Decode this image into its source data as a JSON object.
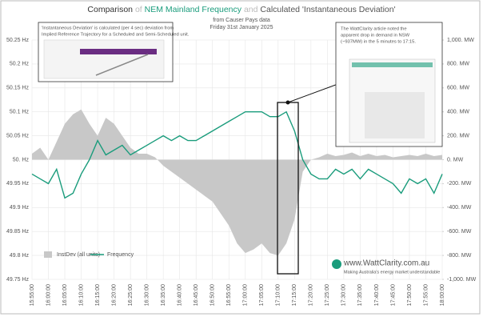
{
  "chart_data": {
    "type": "line",
    "title_parts": [
      "Comparison",
      "of",
      "NEM Mainland Frequency",
      "and",
      "Calculated 'Instantaneous Deviation'"
    ],
    "subtitle": [
      "from Causer Pays data",
      "Friday 31st January 2025"
    ],
    "annotations": [
      "'Instantaneous Deviation' is calculated (per 4 sec) deviation from",
      "Implied Reference Trajectory for a Scheduled and Semi-Scheduled unit.",
      "The WattClarity article noted the",
      "apparent drop in demand in NSW",
      "(~937MW) in the 5 minutes to 17:15."
    ],
    "watermark": [
      "www.WattClarity.com.au",
      "Making Australia's energy market understandable"
    ],
    "x": [
      "15:55:00",
      "15:57:30",
      "16:00:00",
      "16:02:30",
      "16:05:00",
      "16:07:30",
      "16:10:00",
      "16:12:30",
      "16:15:00",
      "16:17:30",
      "16:20:00",
      "16:22:30",
      "16:25:00",
      "16:27:30",
      "16:30:00",
      "16:32:30",
      "16:35:00",
      "16:37:30",
      "16:40:00",
      "16:42:30",
      "16:45:00",
      "16:47:30",
      "16:50:00",
      "16:52:30",
      "16:55:00",
      "16:57:30",
      "17:00:00",
      "17:02:30",
      "17:05:00",
      "17:07:30",
      "17:10:00",
      "17:12:30",
      "17:15:00",
      "17:17:30",
      "17:20:00",
      "17:22:30",
      "17:25:00",
      "17:27:30",
      "17:30:00",
      "17:32:30",
      "17:35:00",
      "17:37:30",
      "17:40:00",
      "17:42:30",
      "17:45:00",
      "17:47:30",
      "17:50:00",
      "17:52:30",
      "17:55:00",
      "17:57:30",
      "18:00:00"
    ],
    "series": [
      {
        "name": "InstDev (all units)",
        "color": "#c8c8c8",
        "axis": "y2",
        "values": [
          50,
          100,
          0,
          150,
          300,
          380,
          420,
          300,
          200,
          350,
          300,
          200,
          100,
          50,
          50,
          20,
          -50,
          -100,
          -150,
          -200,
          -250,
          -300,
          -350,
          -450,
          -550,
          -700,
          -780,
          -750,
          -700,
          -780,
          -800,
          -700,
          -500,
          -100,
          0,
          20,
          50,
          30,
          40,
          60,
          30,
          50,
          30,
          40,
          20,
          30,
          40,
          30,
          50,
          30,
          40
        ]
      },
      {
        "name": "Frequency",
        "color": "#1a9c7c",
        "values": [
          49.97,
          49.96,
          49.95,
          49.98,
          49.92,
          49.93,
          49.97,
          50.0,
          50.04,
          50.01,
          50.02,
          50.03,
          50.01,
          50.02,
          50.03,
          50.04,
          50.05,
          50.04,
          50.05,
          50.04,
          50.04,
          50.05,
          50.06,
          50.07,
          50.08,
          50.09,
          50.1,
          50.1,
          50.1,
          50.09,
          50.09,
          50.1,
          50.06,
          50.0,
          49.97,
          49.96,
          49.96,
          49.98,
          49.97,
          49.98,
          49.96,
          49.98,
          49.97,
          49.96,
          49.95,
          49.93,
          49.96,
          49.95,
          49.96,
          49.93,
          49.97
        ]
      }
    ],
    "xlim": [
      "15:55:00",
      "18:00:00"
    ],
    "xticks": [
      "15:55:00",
      "16:00:00",
      "16:05:00",
      "16:10:00",
      "16:15:00",
      "16:20:00",
      "16:25:00",
      "16:30:00",
      "16:35:00",
      "16:40:00",
      "16:45:00",
      "16:50:00",
      "16:55:00",
      "17:00:00",
      "17:05:00",
      "17:10:00",
      "17:15:00",
      "17:20:00",
      "17:25:00",
      "17:30:00",
      "17:35:00",
      "17:40:00",
      "17:45:00",
      "17:50:00",
      "17:55:00",
      "18:00:00"
    ],
    "ylim": [
      49.75,
      50.25
    ],
    "yticks": [
      {
        "value": 49.75,
        "label": "49.75 Hz"
      },
      {
        "value": 49.8,
        "label": "49.8 Hz"
      },
      {
        "value": 49.85,
        "label": "49.85 Hz"
      },
      {
        "value": 49.9,
        "label": "49.9 Hz"
      },
      {
        "value": 49.95,
        "label": "49.95 Hz"
      },
      {
        "value": 50,
        "label": "50. Hz"
      },
      {
        "value": 50.05,
        "label": "50.05 Hz"
      },
      {
        "value": 50.1,
        "label": "50.1 Hz"
      },
      {
        "value": 50.15,
        "label": "50.15 Hz"
      },
      {
        "value": 50.2,
        "label": "50.2 Hz"
      },
      {
        "value": 50.25,
        "label": "50.25 Hz"
      }
    ],
    "y2lim": [
      -1000,
      1000
    ],
    "y2ticks": [
      {
        "value": -1000,
        "label": "-1,000. MW"
      },
      {
        "value": -800,
        "label": "-800. MW"
      },
      {
        "value": -600,
        "label": "-600. MW"
      },
      {
        "value": -400,
        "label": "-400. MW"
      },
      {
        "value": -200,
        "label": "-200. MW"
      },
      {
        "value": 0,
        "label": "0. MW"
      },
      {
        "value": 200,
        "label": "200. MW"
      },
      {
        "value": 400,
        "label": "400. MW"
      },
      {
        "value": 600,
        "label": "600. MW"
      },
      {
        "value": 800,
        "label": "800. MW"
      },
      {
        "value": 1000,
        "label": "1,000. MW"
      }
    ],
    "grid": true
  }
}
